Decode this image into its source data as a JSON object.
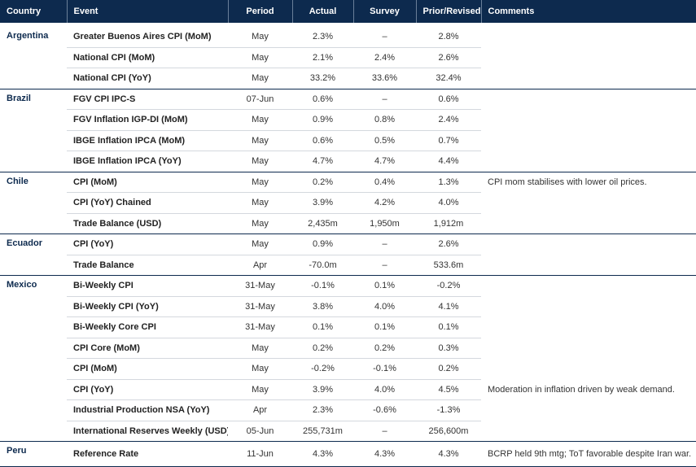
{
  "headers": [
    "Country",
    "Event",
    "Period",
    "Actual",
    "Survey",
    "Prior/Revised",
    "Comments"
  ],
  "groups": [
    {
      "country": "Argentina",
      "rows": [
        {
          "event": "Greater Buenos Aires CPI (MoM)",
          "period": "May",
          "actual": "2.3%",
          "survey": "–",
          "prior": "2.8%",
          "comment": ""
        },
        {
          "event": "National CPI (MoM)",
          "period": "May",
          "actual": "2.1%",
          "survey": "2.4%",
          "prior": "2.6%",
          "comment": ""
        },
        {
          "event": "National CPI (YoY)",
          "period": "May",
          "actual": "33.2%",
          "survey": "33.6%",
          "prior": "32.4%",
          "comment": ""
        }
      ]
    },
    {
      "country": "Brazil",
      "rows": [
        {
          "event": "FGV CPI IPC-S",
          "period": "07-Jun",
          "actual": "0.6%",
          "survey": "–",
          "prior": "0.6%",
          "comment": ""
        },
        {
          "event": "FGV Inflation IGP-DI (MoM)",
          "period": "May",
          "actual": "0.9%",
          "survey": "0.8%",
          "prior": "2.4%",
          "comment": ""
        },
        {
          "event": "IBGE Inflation IPCA (MoM)",
          "period": "May",
          "actual": "0.6%",
          "survey": "0.5%",
          "prior": "0.7%",
          "comment": ""
        },
        {
          "event": "IBGE Inflation IPCA (YoY)",
          "period": "May",
          "actual": "4.7%",
          "survey": "4.7%",
          "prior": "4.4%",
          "comment": ""
        }
      ]
    },
    {
      "country": "Chile",
      "rows": [
        {
          "event": "CPI (MoM)",
          "period": "May",
          "actual": "0.2%",
          "survey": "0.4%",
          "prior": "1.3%",
          "comment": "CPI mom stabilises with lower oil prices."
        },
        {
          "event": "CPI (YoY) Chained",
          "period": "May",
          "actual": "3.9%",
          "survey": "4.2%",
          "prior": "4.0%",
          "comment": ""
        },
        {
          "event": "Trade Balance (USD)",
          "period": "May",
          "actual": "2,435m",
          "survey": "1,950m",
          "prior": "1,912m",
          "comment": ""
        }
      ]
    },
    {
      "country": "Ecuador",
      "rows": [
        {
          "event": "CPI (YoY)",
          "period": "May",
          "actual": "0.9%",
          "survey": "–",
          "prior": "2.6%",
          "comment": ""
        },
        {
          "event": "Trade Balance",
          "period": "Apr",
          "actual": "-70.0m",
          "survey": "–",
          "prior": "533.6m",
          "comment": ""
        }
      ]
    },
    {
      "country": "Mexico",
      "rows": [
        {
          "event": "Bi-Weekly CPI",
          "period": "31-May",
          "actual": "-0.1%",
          "survey": "0.1%",
          "prior": "-0.2%",
          "comment": ""
        },
        {
          "event": "Bi-Weekly CPI (YoY)",
          "period": "31-May",
          "actual": "3.8%",
          "survey": "4.0%",
          "prior": "4.1%",
          "comment": ""
        },
        {
          "event": "Bi-Weekly Core CPI",
          "period": "31-May",
          "actual": "0.1%",
          "survey": "0.1%",
          "prior": "0.1%",
          "comment": ""
        },
        {
          "event": "CPI Core (MoM)",
          "period": "May",
          "actual": "0.2%",
          "survey": "0.2%",
          "prior": "0.3%",
          "comment": ""
        },
        {
          "event": "CPI (MoM)",
          "period": "May",
          "actual": "-0.2%",
          "survey": "-0.1%",
          "prior": "0.2%",
          "comment": ""
        },
        {
          "event": "CPI (YoY)",
          "period": "May",
          "actual": "3.9%",
          "survey": "4.0%",
          "prior": "4.5%",
          "comment": "Moderation in inflation driven by weak demand."
        },
        {
          "event": "Industrial Production NSA (YoY)",
          "period": "Apr",
          "actual": "2.3%",
          "survey": "-0.6%",
          "prior": "-1.3%",
          "comment": ""
        },
        {
          "event": "International Reserves Weekly (USD)",
          "period": "05-Jun",
          "actual": "255,731m",
          "survey": "–",
          "prior": "256,600m",
          "comment": ""
        }
      ]
    },
    {
      "country": "Peru",
      "rows": [
        {
          "event": "Reference Rate",
          "period": "11-Jun",
          "actual": "4.3%",
          "survey": "4.3%",
          "prior": "4.3%",
          "comment": "BCRP held 9th mtg; ToT favorable despite Iran war."
        }
      ]
    }
  ]
}
